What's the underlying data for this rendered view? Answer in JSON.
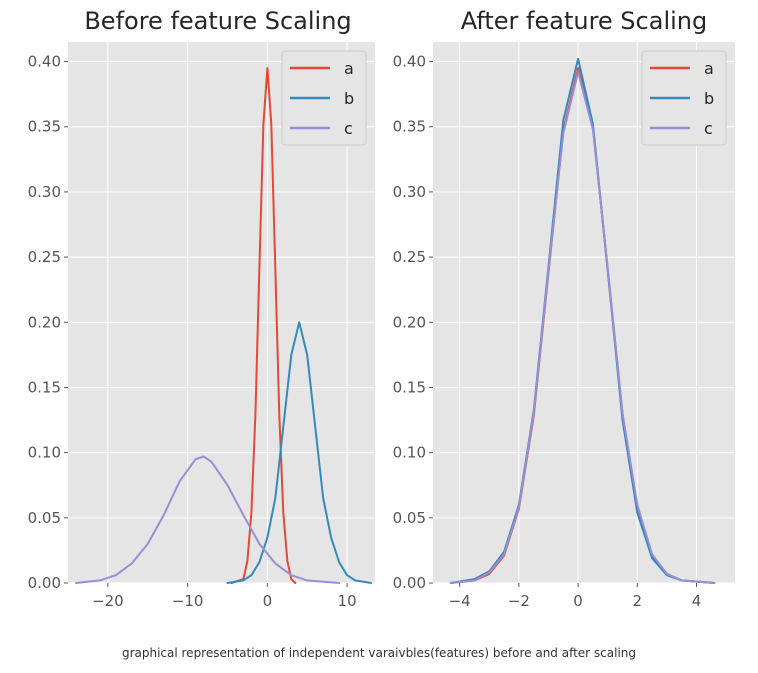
{
  "caption": "graphical representation of independent varaivbles(features) before and after scaling",
  "colors": {
    "a": "#E24A33",
    "b": "#348ABD",
    "c": "#988ED5",
    "panel_bg": "#E5E5E5",
    "grid": "#FFFFFF"
  },
  "chart_data": [
    {
      "type": "line",
      "title": "Before feature Scaling",
      "xlabel": "",
      "ylabel": "",
      "xlim": [
        -25,
        13.5
      ],
      "ylim": [
        0,
        0.415
      ],
      "xticks": [
        -20,
        -10,
        0,
        10
      ],
      "xtick_labels": [
        "−20",
        "−10",
        "0",
        "10"
      ],
      "yticks": [
        0.0,
        0.05,
        0.1,
        0.15,
        0.2,
        0.25,
        0.3,
        0.35,
        0.4
      ],
      "ytick_labels": [
        "0.00",
        "0.05",
        "0.10",
        "0.15",
        "0.20",
        "0.25",
        "0.30",
        "0.35",
        "0.40"
      ],
      "grid": true,
      "legend": {
        "position": "top-right",
        "entries": [
          "a",
          "b",
          "c"
        ]
      },
      "series": [
        {
          "name": "a",
          "x": [
            -4.5,
            -3,
            -2.5,
            -2,
            -1.5,
            -1,
            -0.5,
            0,
            0.5,
            1,
            1.5,
            2,
            2.5,
            3,
            3.5
          ],
          "values": [
            0.0,
            0.003,
            0.017,
            0.054,
            0.129,
            0.242,
            0.352,
            0.395,
            0.352,
            0.242,
            0.129,
            0.054,
            0.017,
            0.003,
            0.0
          ]
        },
        {
          "name": "b",
          "x": [
            -5,
            -3,
            -2,
            -1,
            0,
            1,
            2,
            3,
            4,
            5,
            6,
            7,
            8,
            9,
            10,
            11,
            13
          ],
          "values": [
            0.0,
            0.002,
            0.006,
            0.016,
            0.035,
            0.065,
            0.12,
            0.175,
            0.2,
            0.175,
            0.12,
            0.065,
            0.035,
            0.016,
            0.006,
            0.002,
            0.0
          ]
        },
        {
          "name": "c",
          "x": [
            -24,
            -21,
            -19,
            -17,
            -15,
            -13,
            -11,
            -9,
            -8,
            -7,
            -5,
            -3,
            -1,
            1,
            3,
            5,
            7,
            9
          ],
          "values": [
            0.0,
            0.002,
            0.006,
            0.015,
            0.03,
            0.052,
            0.078,
            0.095,
            0.097,
            0.093,
            0.075,
            0.052,
            0.03,
            0.015,
            0.006,
            0.002,
            0.001,
            0.0
          ]
        }
      ]
    },
    {
      "type": "line",
      "title": "After feature Scaling",
      "xlabel": "",
      "ylabel": "",
      "xlim": [
        -4.9,
        5.3
      ],
      "ylim": [
        0,
        0.415
      ],
      "xticks": [
        -4,
        -2,
        0,
        2,
        4
      ],
      "xtick_labels": [
        "−4",
        "−2",
        "0",
        "2",
        "4"
      ],
      "yticks": [
        0.0,
        0.05,
        0.1,
        0.15,
        0.2,
        0.25,
        0.3,
        0.35,
        0.4
      ],
      "ytick_labels": [
        "0.00",
        "0.05",
        "0.10",
        "0.15",
        "0.20",
        "0.25",
        "0.30",
        "0.35",
        "0.40"
      ],
      "grid": true,
      "legend": {
        "position": "top-right",
        "entries": [
          "a",
          "b",
          "c"
        ]
      },
      "series": [
        {
          "name": "a",
          "x": [
            -4.3,
            -3.5,
            -3,
            -2.5,
            -2,
            -1.5,
            -1,
            -0.5,
            0,
            0.5,
            1,
            1.5,
            2,
            2.5,
            3,
            3.5,
            4.6
          ],
          "values": [
            0.0,
            0.002,
            0.007,
            0.021,
            0.057,
            0.128,
            0.238,
            0.347,
            0.395,
            0.35,
            0.24,
            0.13,
            0.058,
            0.021,
            0.007,
            0.002,
            0.0
          ]
        },
        {
          "name": "b",
          "x": [
            -4.3,
            -3.5,
            -3,
            -2.5,
            -2,
            -1.5,
            -1,
            -0.5,
            0,
            0.5,
            1,
            1.5,
            2,
            2.5,
            3,
            3.5,
            4.6
          ],
          "values": [
            0.0,
            0.003,
            0.009,
            0.024,
            0.06,
            0.132,
            0.243,
            0.355,
            0.402,
            0.352,
            0.24,
            0.125,
            0.054,
            0.019,
            0.006,
            0.002,
            0.0
          ]
        },
        {
          "name": "c",
          "x": [
            -4.3,
            -3.5,
            -3,
            -2.5,
            -2,
            -1.5,
            -1,
            -0.5,
            0,
            0.5,
            1,
            1.5,
            2,
            2.5,
            3,
            3.5,
            4.6
          ],
          "values": [
            0.0,
            0.002,
            0.008,
            0.022,
            0.058,
            0.13,
            0.24,
            0.345,
            0.392,
            0.348,
            0.242,
            0.13,
            0.06,
            0.022,
            0.007,
            0.002,
            0.0
          ]
        }
      ]
    }
  ]
}
